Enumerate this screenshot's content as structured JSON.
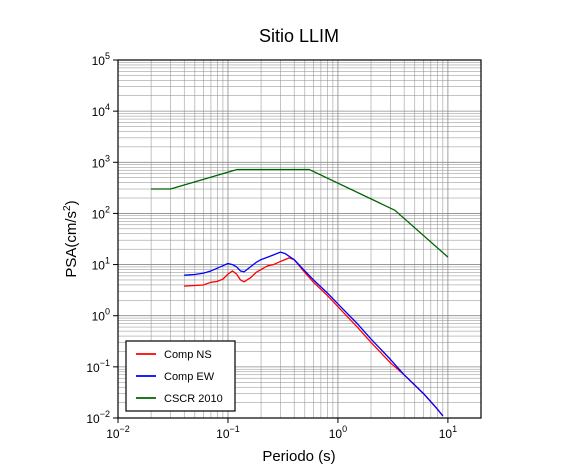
{
  "chart_data": {
    "type": "line",
    "title": "Sitio LLIM",
    "xlabel": "Periodo (s)",
    "ylabel": "PSA(cm/s2)",
    "xscale": "log",
    "yscale": "log",
    "xlim": [
      0.01,
      20
    ],
    "ylim": [
      0.01,
      100000
    ],
    "grid": true,
    "legend_position": "bottom-left",
    "x_ticks": [
      {
        "base": "10",
        "exp": "−2"
      },
      {
        "base": "10",
        "exp": "−1"
      },
      {
        "base": "10",
        "exp": "0"
      },
      {
        "base": "10",
        "exp": "1"
      }
    ],
    "y_ticks": [
      {
        "base": "10",
        "exp": "−2"
      },
      {
        "base": "10",
        "exp": "−1"
      },
      {
        "base": "10",
        "exp": "0"
      },
      {
        "base": "10",
        "exp": "1"
      },
      {
        "base": "10",
        "exp": "2"
      },
      {
        "base": "10",
        "exp": "3"
      },
      {
        "base": "10",
        "exp": "4"
      },
      {
        "base": "10",
        "exp": "5"
      }
    ],
    "series": [
      {
        "name": "Comp NS",
        "color": "#ff0000",
        "points": [
          [
            0.04,
            3.8
          ],
          [
            0.05,
            3.9
          ],
          [
            0.06,
            4.0
          ],
          [
            0.07,
            4.5
          ],
          [
            0.08,
            4.7
          ],
          [
            0.09,
            5.2
          ],
          [
            0.1,
            6.5
          ],
          [
            0.11,
            7.5
          ],
          [
            0.12,
            6.5
          ],
          [
            0.13,
            5.0
          ],
          [
            0.14,
            4.6
          ],
          [
            0.16,
            5.5
          ],
          [
            0.18,
            7.0
          ],
          [
            0.2,
            8.0
          ],
          [
            0.23,
            9.5
          ],
          [
            0.26,
            10.0
          ],
          [
            0.3,
            11.5
          ],
          [
            0.33,
            12.5
          ],
          [
            0.36,
            13.5
          ],
          [
            0.4,
            12.5
          ],
          [
            0.5,
            7.0
          ],
          [
            0.6,
            4.5
          ],
          [
            0.8,
            2.5
          ],
          [
            1.0,
            1.5
          ],
          [
            1.5,
            0.6
          ],
          [
            2.0,
            0.3
          ],
          [
            3.0,
            0.12
          ],
          [
            4.0,
            0.07
          ],
          [
            6.0,
            0.03
          ],
          [
            8.0,
            0.015
          ],
          [
            9.0,
            0.011
          ]
        ]
      },
      {
        "name": "Comp EW",
        "color": "#0000ff",
        "points": [
          [
            0.04,
            6.2
          ],
          [
            0.05,
            6.4
          ],
          [
            0.06,
            6.8
          ],
          [
            0.07,
            7.5
          ],
          [
            0.08,
            8.5
          ],
          [
            0.09,
            9.5
          ],
          [
            0.1,
            10.5
          ],
          [
            0.11,
            10.0
          ],
          [
            0.12,
            9.0
          ],
          [
            0.13,
            7.5
          ],
          [
            0.14,
            7.2
          ],
          [
            0.16,
            9.0
          ],
          [
            0.18,
            11.0
          ],
          [
            0.2,
            12.5
          ],
          [
            0.23,
            14.0
          ],
          [
            0.26,
            15.5
          ],
          [
            0.3,
            17.5
          ],
          [
            0.33,
            16.5
          ],
          [
            0.36,
            14.5
          ],
          [
            0.4,
            12.5
          ],
          [
            0.5,
            7.5
          ],
          [
            0.6,
            5.0
          ],
          [
            0.8,
            2.8
          ],
          [
            1.0,
            1.7
          ],
          [
            1.5,
            0.7
          ],
          [
            2.0,
            0.35
          ],
          [
            3.0,
            0.14
          ],
          [
            4.0,
            0.07
          ],
          [
            6.0,
            0.03
          ],
          [
            8.0,
            0.015
          ],
          [
            9.0,
            0.011
          ]
        ]
      },
      {
        "name": "CSCR 2010",
        "color": "#006400",
        "points": [
          [
            0.02,
            300
          ],
          [
            0.03,
            300
          ],
          [
            0.12,
            720
          ],
          [
            0.55,
            720
          ],
          [
            3.3,
            115
          ],
          [
            10.0,
            14
          ]
        ]
      }
    ]
  }
}
